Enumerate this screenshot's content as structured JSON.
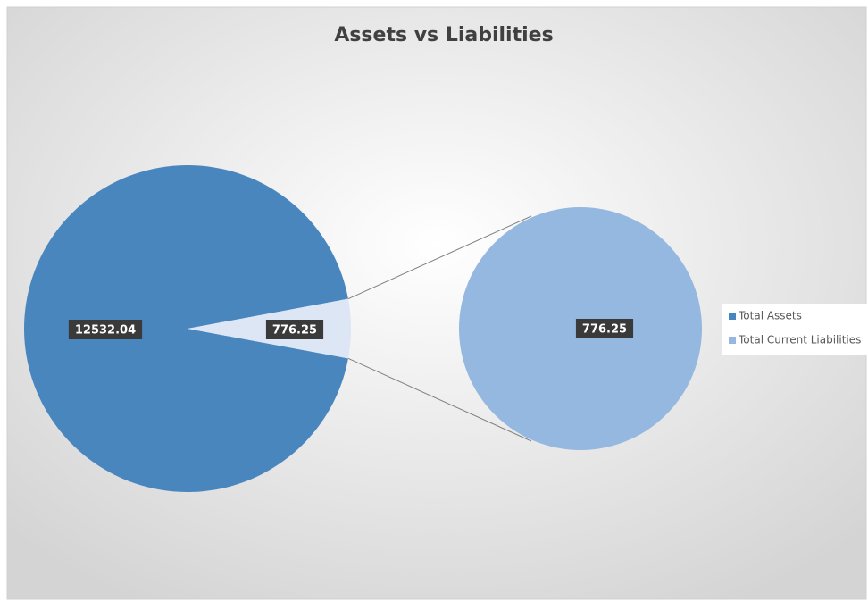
{
  "chart_data": {
    "type": "pie",
    "title": "Assets vs Liabilities",
    "categories": [
      "Total Assets",
      "Total Current Liabilities"
    ],
    "values": [
      12532.04,
      776.25
    ],
    "colors": [
      "#4a86be",
      "#95b8e0"
    ],
    "legend": "right"
  }
}
